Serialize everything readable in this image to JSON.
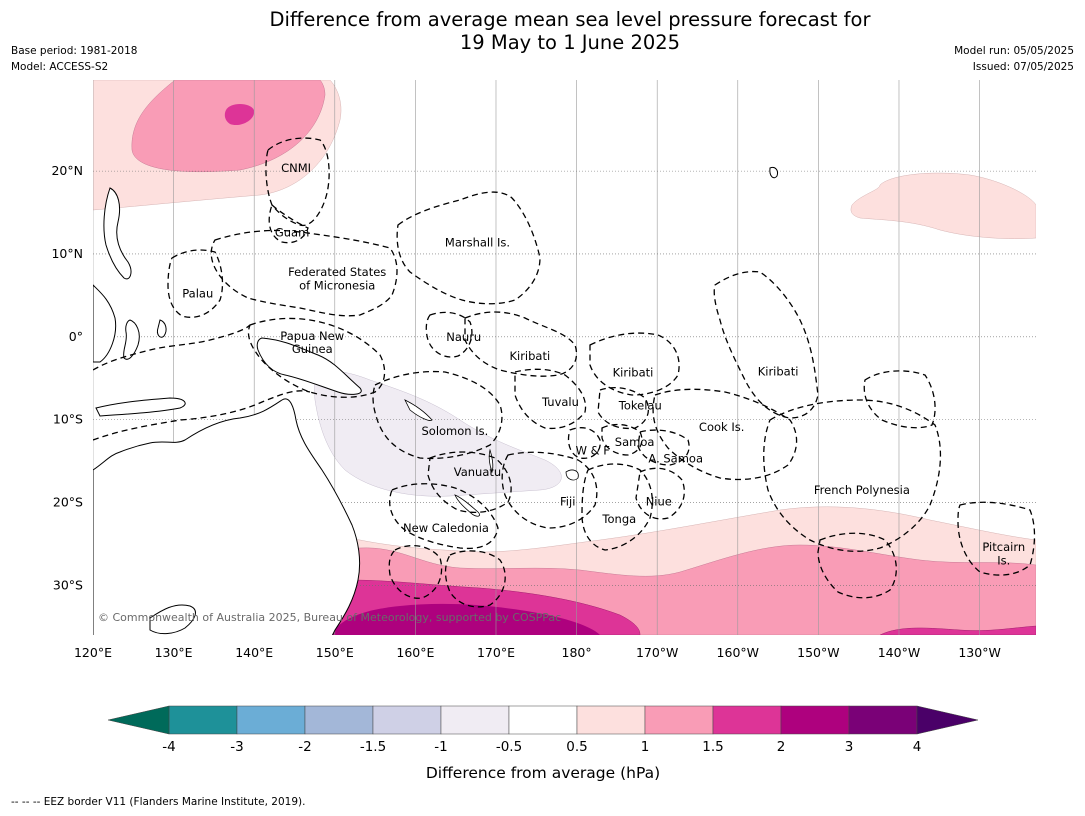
{
  "title": {
    "line1": "Difference from average mean sea level pressure forecast for",
    "line2": "19 May to 1 June 2025"
  },
  "meta": {
    "base_period": "Base period: 1981-2018",
    "model": "Model: ACCESS-S2",
    "model_run": "Model run: 05/05/2025",
    "issued": "Issued: 07/05/2025"
  },
  "map": {
    "lon_range": [
      120,
      237
    ],
    "lat_range": [
      -36,
      31
    ],
    "lat_ticks": [
      {
        "value": 20,
        "label": "20°N"
      },
      {
        "value": 10,
        "label": "10°N"
      },
      {
        "value": 0,
        "label": "0°"
      },
      {
        "value": -10,
        "label": "10°S"
      },
      {
        "value": -20,
        "label": "20°S"
      },
      {
        "value": -30,
        "label": "30°S"
      }
    ],
    "lon_ticks": [
      {
        "value": 120,
        "label": "120°E"
      },
      {
        "value": 130,
        "label": "130°E"
      },
      {
        "value": 140,
        "label": "140°E"
      },
      {
        "value": 150,
        "label": "150°E"
      },
      {
        "value": 160,
        "label": "160°E"
      },
      {
        "value": 170,
        "label": "170°E"
      },
      {
        "value": 180,
        "label": "180°"
      },
      {
        "value": 190,
        "label": "170°W"
      },
      {
        "value": 200,
        "label": "160°W"
      },
      {
        "value": 210,
        "label": "150°W"
      },
      {
        "value": 220,
        "label": "140°W"
      },
      {
        "value": 230,
        "label": "130°W"
      }
    ],
    "countries": [
      {
        "name": "CNMI",
        "lon": 145.2,
        "lat": 20.4
      },
      {
        "name": "Guam",
        "lon": 144.7,
        "lat": 12.6
      },
      {
        "name": "Marshall Is.",
        "lon": 167.7,
        "lat": 11.4
      },
      {
        "name": "Federated States",
        "lon": 150.3,
        "lat": 7.8
      },
      {
        "name": "of Micronesia",
        "lon": 150.3,
        "lat": 6.2
      },
      {
        "name": "Palau",
        "lon": 133.0,
        "lat": 5.2
      },
      {
        "name": "Papua New",
        "lon": 147.2,
        "lat": 0.1
      },
      {
        "name": "Guinea",
        "lon": 147.2,
        "lat": -1.5
      },
      {
        "name": "Nauru",
        "lon": 166.0,
        "lat": 0.0
      },
      {
        "name": "Kiribati",
        "lon": 174.2,
        "lat": -2.3
      },
      {
        "name": "Kiribati",
        "lon": 187.0,
        "lat": -4.3
      },
      {
        "name": "Kiribati",
        "lon": 205.0,
        "lat": -4.2
      },
      {
        "name": "Tuvalu",
        "lon": 178.0,
        "lat": -7.9
      },
      {
        "name": "Tokelau",
        "lon": 187.9,
        "lat": -8.3
      },
      {
        "name": "Cook Is.",
        "lon": 198.0,
        "lat": -10.9
      },
      {
        "name": "Solomon Is.",
        "lon": 164.9,
        "lat": -11.4
      },
      {
        "name": "Samoa",
        "lon": 187.2,
        "lat": -12.7
      },
      {
        "name": "W & F",
        "lon": 182.0,
        "lat": -13.7
      },
      {
        "name": "A. Samoa",
        "lon": 192.3,
        "lat": -14.7
      },
      {
        "name": "Vanuatu",
        "lon": 167.7,
        "lat": -16.3
      },
      {
        "name": "Fiji",
        "lon": 178.9,
        "lat": -19.9
      },
      {
        "name": "Niue",
        "lon": 190.2,
        "lat": -19.9
      },
      {
        "name": "Tonga",
        "lon": 185.3,
        "lat": -22.0
      },
      {
        "name": "French Polynesia",
        "lon": 215.4,
        "lat": -18.5
      },
      {
        "name": "New Caledonia",
        "lon": 163.8,
        "lat": -23.1
      },
      {
        "name": "Pitcairn",
        "lon": 233.0,
        "lat": -25.4
      },
      {
        "name": "Is.",
        "lon": 233.0,
        "lat": -27.0
      }
    ],
    "copyright": "© Commonwealth of Australia 2025, Bureau of Meteorology, supported by COSPPac"
  },
  "legend": {
    "title": "Difference from average (hPa)",
    "ticks": [
      "-4",
      "-3",
      "-2",
      "-1.5",
      "-1",
      "-0.5",
      "0.5",
      "1",
      "1.5",
      "2",
      "3",
      "4"
    ],
    "under_color": "#006a5a",
    "over_color": "#4a0068",
    "colors": [
      "#1e9199",
      "#6badd6",
      "#a3b7d8",
      "#cfd0e6",
      "#f0ecf3",
      "#ffffff",
      "#fde0de",
      "#f99cb6",
      "#dd3497",
      "#ae017e",
      "#7a0177"
    ]
  },
  "footer": "--  --  -- EEZ border V11 (Flanders Marine Institute, 2019)."
}
